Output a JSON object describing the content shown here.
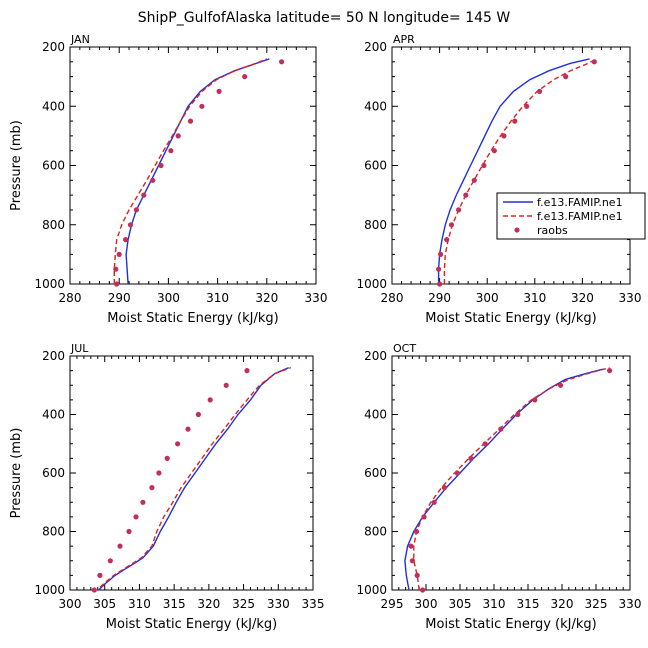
{
  "title": "ShipP_GulfofAlaska  latitude= 50 N longitude= 145 W",
  "colors": {
    "model1": "#1f2fe0",
    "model2": "#e0201e",
    "obs": "#c0315a"
  },
  "chart_data": [
    {
      "type": "line",
      "panel": "JAN",
      "xlabel": "Moist Static Energy (kJ/kg)",
      "ylabel": "Pressure (mb)",
      "xlim": [
        280,
        330
      ],
      "ylim": [
        1000,
        200
      ],
      "grid": false,
      "xticks": [
        280,
        290,
        300,
        310,
        320,
        330
      ],
      "yticks": [
        200,
        400,
        600,
        800,
        1000
      ],
      "series": [
        {
          "key": "model1",
          "style": "solid",
          "points": [
            [
              291.8,
              1000
            ],
            [
              291.6,
              950
            ],
            [
              291.4,
              900
            ],
            [
              291.8,
              850
            ],
            [
              292.5,
              800
            ],
            [
              293.5,
              750
            ],
            [
              295,
              700
            ],
            [
              296.5,
              650
            ],
            [
              298,
              600
            ],
            [
              299.5,
              550
            ],
            [
              301,
              500
            ],
            [
              302.5,
              450
            ],
            [
              304,
              400
            ],
            [
              306.5,
              350
            ],
            [
              309.5,
              310
            ],
            [
              313.5,
              280
            ],
            [
              317,
              260
            ],
            [
              320.5,
              240
            ]
          ]
        },
        {
          "key": "model2",
          "style": "dashed",
          "points": [
            [
              289,
              1000
            ],
            [
              289,
              950
            ],
            [
              289.2,
              900
            ],
            [
              289.5,
              850
            ],
            [
              290.5,
              800
            ],
            [
              292,
              750
            ],
            [
              293.8,
              700
            ],
            [
              295.6,
              650
            ],
            [
              297.3,
              600
            ],
            [
              299,
              550
            ],
            [
              300.8,
              500
            ],
            [
              302.5,
              450
            ],
            [
              304.3,
              400
            ],
            [
              306.8,
              350
            ],
            [
              309.8,
              310
            ],
            [
              313.5,
              280
            ],
            [
              317,
              260
            ],
            [
              320,
              240
            ]
          ]
        },
        {
          "key": "obs",
          "style": "dots",
          "points": [
            [
              289.5,
              1000
            ],
            [
              289.3,
              950
            ],
            [
              290,
              900
            ],
            [
              291.3,
              850
            ],
            [
              292.3,
              800
            ],
            [
              293.5,
              750
            ],
            [
              295,
              700
            ],
            [
              296.8,
              650
            ],
            [
              298.5,
              600
            ],
            [
              300.5,
              550
            ],
            [
              302,
              500
            ],
            [
              304.5,
              450
            ],
            [
              306.8,
              400
            ],
            [
              310.3,
              350
            ],
            [
              315.5,
              300
            ],
            [
              323,
              250
            ]
          ]
        }
      ]
    },
    {
      "type": "line",
      "panel": "APR",
      "xlabel": "Moist Static Energy (kJ/kg)",
      "ylabel": "",
      "xlim": [
        280,
        330
      ],
      "ylim": [
        1000,
        200
      ],
      "grid": false,
      "xticks": [
        280,
        290,
        300,
        310,
        320,
        330
      ],
      "yticks": [
        200,
        400,
        600,
        800,
        1000
      ],
      "legend": {
        "position": "right",
        "entries": [
          {
            "key": "model1",
            "label": "f.e13.FAMIP.ne1"
          },
          {
            "key": "model2",
            "label": "f.e13.FAMIP.ne1"
          },
          {
            "key": "obs",
            "label": "raobs"
          }
        ]
      },
      "series": [
        {
          "key": "model1",
          "style": "solid",
          "points": [
            [
              289.8,
              1000
            ],
            [
              289.8,
              950
            ],
            [
              290,
              900
            ],
            [
              290.5,
              850
            ],
            [
              291.2,
              800
            ],
            [
              292.2,
              750
            ],
            [
              293.5,
              700
            ],
            [
              295,
              650
            ],
            [
              296.5,
              600
            ],
            [
              298,
              550
            ],
            [
              299.5,
              500
            ],
            [
              301,
              450
            ],
            [
              302.7,
              400
            ],
            [
              305.5,
              350
            ],
            [
              309,
              310
            ],
            [
              313,
              280
            ],
            [
              317.5,
              255
            ],
            [
              321.5,
              240
            ]
          ]
        },
        {
          "key": "model2",
          "style": "dashed",
          "points": [
            [
              291,
              1000
            ],
            [
              291,
              950
            ],
            [
              291.2,
              900
            ],
            [
              291.8,
              850
            ],
            [
              292.7,
              800
            ],
            [
              294,
              750
            ],
            [
              295.5,
              700
            ],
            [
              297.2,
              650
            ],
            [
              299,
              600
            ],
            [
              300.8,
              550
            ],
            [
              302.8,
              500
            ],
            [
              305,
              450
            ],
            [
              307.5,
              400
            ],
            [
              310.5,
              350
            ],
            [
              314,
              310
            ],
            [
              317.5,
              280
            ],
            [
              320.5,
              260
            ],
            [
              322.5,
              245
            ]
          ]
        },
        {
          "key": "obs",
          "style": "dots",
          "points": [
            [
              290,
              1000
            ],
            [
              289.8,
              950
            ],
            [
              290.2,
              900
            ],
            [
              291.5,
              850
            ],
            [
              292.5,
              800
            ],
            [
              294,
              750
            ],
            [
              295.5,
              700
            ],
            [
              297.3,
              650
            ],
            [
              299.3,
              600
            ],
            [
              301.5,
              550
            ],
            [
              303.5,
              500
            ],
            [
              305.8,
              450
            ],
            [
              308.3,
              400
            ],
            [
              311,
              350
            ],
            [
              316.5,
              300
            ],
            [
              322.5,
              250
            ]
          ]
        }
      ]
    },
    {
      "type": "line",
      "panel": "JUL",
      "xlabel": "Moist Static Energy (kJ/kg)",
      "ylabel": "Pressure (mb)",
      "xlim": [
        300,
        335
      ],
      "ylim": [
        1000,
        200
      ],
      "grid": false,
      "xticks": [
        300,
        305,
        310,
        315,
        320,
        325,
        330,
        335
      ],
      "yticks": [
        200,
        400,
        600,
        800,
        1000
      ],
      "series": [
        {
          "key": "model1",
          "style": "solid",
          "points": [
            [
              303.7,
              1010
            ],
            [
              305,
              980
            ],
            [
              306.5,
              950
            ],
            [
              308.5,
              920
            ],
            [
              310.5,
              890
            ],
            [
              312,
              850
            ],
            [
              313,
              800
            ],
            [
              314.2,
              750
            ],
            [
              315.3,
              700
            ],
            [
              316.5,
              650
            ],
            [
              318,
              600
            ],
            [
              319.5,
              550
            ],
            [
              321,
              500
            ],
            [
              322.7,
              450
            ],
            [
              324.2,
              400
            ],
            [
              326,
              350
            ],
            [
              327.5,
              300
            ],
            [
              329.5,
              260
            ],
            [
              331.5,
              240
            ]
          ]
        },
        {
          "key": "model2",
          "style": "dashed",
          "points": [
            [
              303.5,
              1010
            ],
            [
              304.8,
              980
            ],
            [
              306.3,
              950
            ],
            [
              308.3,
              920
            ],
            [
              310.3,
              890
            ],
            [
              311.8,
              850
            ],
            [
              312.5,
              800
            ],
            [
              313.5,
              750
            ],
            [
              314.8,
              700
            ],
            [
              316,
              650
            ],
            [
              317.5,
              600
            ],
            [
              319,
              550
            ],
            [
              320.5,
              500
            ],
            [
              322.2,
              450
            ],
            [
              323.8,
              400
            ],
            [
              325.5,
              350
            ],
            [
              327.3,
              300
            ],
            [
              329.5,
              260
            ],
            [
              331.8,
              240
            ]
          ]
        },
        {
          "key": "obs",
          "style": "dots",
          "points": [
            [
              303.5,
              1000
            ],
            [
              304.3,
              950
            ],
            [
              305.8,
              900
            ],
            [
              307.2,
              850
            ],
            [
              308.5,
              800
            ],
            [
              309.5,
              750
            ],
            [
              310.5,
              700
            ],
            [
              311.8,
              650
            ],
            [
              312.8,
              600
            ],
            [
              314,
              550
            ],
            [
              315.5,
              500
            ],
            [
              317,
              450
            ],
            [
              318.5,
              400
            ],
            [
              320.2,
              350
            ],
            [
              322.5,
              300
            ],
            [
              325.5,
              250
            ]
          ]
        }
      ]
    },
    {
      "type": "line",
      "panel": "OCT",
      "xlabel": "Moist Static Energy (kJ/kg)",
      "ylabel": "",
      "xlim": [
        295,
        330
      ],
      "ylim": [
        1000,
        200
      ],
      "grid": false,
      "xticks": [
        295,
        300,
        305,
        310,
        315,
        320,
        325,
        330
      ],
      "yticks": [
        200,
        400,
        600,
        800,
        1000
      ],
      "series": [
        {
          "key": "model1",
          "style": "solid",
          "points": [
            [
              297.5,
              1000
            ],
            [
              297.1,
              950
            ],
            [
              296.9,
              900
            ],
            [
              297.3,
              850
            ],
            [
              298.2,
              800
            ],
            [
              299.5,
              750
            ],
            [
              301.2,
              700
            ],
            [
              303,
              650
            ],
            [
              305,
              600
            ],
            [
              307,
              550
            ],
            [
              309.2,
              500
            ],
            [
              311.2,
              450
            ],
            [
              313.3,
              400
            ],
            [
              315.7,
              350
            ],
            [
              318.2,
              310
            ],
            [
              320.5,
              280
            ],
            [
              323.5,
              260
            ],
            [
              326,
              245
            ]
          ]
        },
        {
          "key": "model2",
          "style": "dashed",
          "points": [
            [
              299,
              1000
            ],
            [
              298.7,
              950
            ],
            [
              298.2,
              900
            ],
            [
              298.2,
              850
            ],
            [
              298.6,
              800
            ],
            [
              299.5,
              750
            ],
            [
              300.7,
              700
            ],
            [
              302.3,
              650
            ],
            [
              304.2,
              600
            ],
            [
              306.3,
              550
            ],
            [
              308.5,
              500
            ],
            [
              310.8,
              450
            ],
            [
              313,
              400
            ],
            [
              315.5,
              350
            ],
            [
              318.3,
              310
            ],
            [
              321,
              280
            ],
            [
              324.5,
              255
            ],
            [
              327,
              240
            ]
          ]
        },
        {
          "key": "obs",
          "style": "dots",
          "points": [
            [
              299.5,
              1000
            ],
            [
              298.7,
              950
            ],
            [
              298,
              900
            ],
            [
              297.8,
              850
            ],
            [
              298.6,
              800
            ],
            [
              299.7,
              750
            ],
            [
              301.2,
              700
            ],
            [
              302.7,
              650
            ],
            [
              304.6,
              600
            ],
            [
              306.6,
              550
            ],
            [
              308.7,
              500
            ],
            [
              311,
              450
            ],
            [
              313.5,
              400
            ],
            [
              316,
              350
            ],
            [
              319.8,
              300
            ],
            [
              327,
              250
            ]
          ]
        }
      ]
    }
  ]
}
